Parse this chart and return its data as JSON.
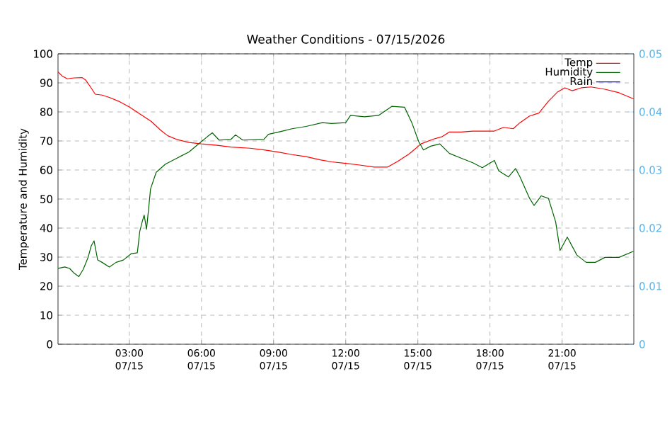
{
  "chart_data": {
    "type": "line",
    "title": "Weather Conditions - 07/15/2026",
    "ylabel": "Temperature and Humidity",
    "xlim": [
      "2026-07-15T00:02",
      "2026-07-15T23:59"
    ],
    "ylim": [
      0,
      100
    ],
    "y2lim": [
      0,
      0.05
    ],
    "xticks": [
      {
        "value": "2026-07-15T03:00",
        "label": "03:00 07/15"
      },
      {
        "value": "2026-07-15T06:00",
        "label": "06:00 07/15"
      },
      {
        "value": "2026-07-15T09:00",
        "label": "09:00 07/15"
      },
      {
        "value": "2026-07-15T12:00",
        "label": "12:00 07/15"
      },
      {
        "value": "2026-07-15T15:00",
        "label": "15:00 07/15"
      },
      {
        "value": "2026-07-15T18:00",
        "label": "18:00 07/15"
      },
      {
        "value": "2026-07-15T21:00",
        "label": "21:00 07/15"
      }
    ],
    "yticks": [
      0,
      10,
      20,
      30,
      40,
      50,
      60,
      70,
      80,
      90,
      100
    ],
    "y2ticks": [
      0,
      0.01,
      0.02,
      0.03,
      0.04,
      0.05
    ],
    "grid": true,
    "legend": "top right",
    "series": [
      {
        "name": "Temp",
        "color": "#ff0000",
        "x": [
          "2026-07-15T00:02",
          "2026-07-15T00:13",
          "2026-07-15T00:25",
          "2026-07-15T00:42",
          "2026-07-15T01:02",
          "2026-07-15T01:11",
          "2026-07-15T01:23",
          "2026-07-15T01:35",
          "2026-07-15T01:52",
          "2026-07-15T02:10",
          "2026-07-15T02:33",
          "2026-07-15T03:00",
          "2026-07-15T03:26",
          "2026-07-15T03:55",
          "2026-07-15T04:19",
          "2026-07-15T04:36",
          "2026-07-15T04:59",
          "2026-07-15T05:29",
          "2026-07-15T06:00",
          "2026-07-15T06:39",
          "2026-07-15T07:14",
          "2026-07-15T08:01",
          "2026-07-15T08:36",
          "2026-07-15T09:11",
          "2026-07-15T09:46",
          "2026-07-15T10:21",
          "2026-07-15T10:56",
          "2026-07-15T11:25",
          "2026-07-15T12:00",
          "2026-07-15T12:35",
          "2026-07-15T13:11",
          "2026-07-15T13:44",
          "2026-07-15T14:10",
          "2026-07-15T14:39",
          "2026-07-15T15:08",
          "2026-07-15T15:38",
          "2026-07-15T16:01",
          "2026-07-15T16:19",
          "2026-07-15T16:48",
          "2026-07-15T17:17",
          "2026-07-15T18:11",
          "2026-07-15T18:34",
          "2026-07-15T18:58",
          "2026-07-15T19:15",
          "2026-07-15T19:39",
          "2026-07-15T20:02",
          "2026-07-15T20:26",
          "2026-07-15T20:49",
          "2026-07-15T21:07",
          "2026-07-15T21:25",
          "2026-07-15T21:48",
          "2026-07-15T22:12",
          "2026-07-15T22:47",
          "2026-07-15T23:22",
          "2026-07-15T23:58"
        ],
        "values": [
          93.8,
          92.3,
          91.4,
          91.7,
          91.8,
          91,
          88.6,
          86.1,
          85.8,
          85,
          83.7,
          81.7,
          79.3,
          76.7,
          73.6,
          71.8,
          70.5,
          69.5,
          69,
          68.5,
          67.9,
          67.5,
          66.9,
          66.2,
          65.3,
          64.6,
          63.5,
          62.8,
          62.3,
          61.7,
          61.0,
          61.0,
          63.0,
          65.6,
          69.0,
          70.6,
          71.5,
          73.1,
          73.1,
          73.4,
          73.4,
          74.7,
          74.2,
          76.3,
          78.6,
          79.6,
          83.7,
          86.9,
          88.3,
          87.3,
          88.3,
          88.6,
          87.8,
          86.6,
          84.5
        ]
      },
      {
        "name": "Humidity",
        "color": "#006400",
        "x": [
          "2026-07-15T00:02",
          "2026-07-15T00:19",
          "2026-07-15T00:31",
          "2026-07-15T00:42",
          "2026-07-15T00:54",
          "2026-07-15T01:05",
          "2026-07-15T01:17",
          "2026-07-15T01:25",
          "2026-07-15T01:32",
          "2026-07-15T01:41",
          "2026-07-15T01:52",
          "2026-07-15T02:10",
          "2026-07-15T02:27",
          "2026-07-15T02:45",
          "2026-07-15T03:05",
          "2026-07-15T03:20",
          "2026-07-15T03:26",
          "2026-07-15T03:32",
          "2026-07-15T03:37",
          "2026-07-15T03:43",
          "2026-07-15T03:53",
          "2026-07-15T04:07",
          "2026-07-15T04:30",
          "2026-07-15T04:59",
          "2026-07-15T05:29",
          "2026-07-15T06:00",
          "2026-07-15T06:15",
          "2026-07-15T06:27",
          "2026-07-15T06:44",
          "2026-07-15T07:14",
          "2026-07-15T07:25",
          "2026-07-15T07:43",
          "2026-07-15T08:36",
          "2026-07-15T08:47",
          "2026-07-15T09:22",
          "2026-07-15T09:46",
          "2026-07-15T10:21",
          "2026-07-15T11:02",
          "2026-07-15T11:25",
          "2026-07-15T12:00",
          "2026-07-15T12:12",
          "2026-07-15T12:47",
          "2026-07-15T13:22",
          "2026-07-15T13:55",
          "2026-07-15T14:27",
          "2026-07-15T14:45",
          "2026-07-15T15:02",
          "2026-07-15T15:14",
          "2026-07-15T15:32",
          "2026-07-15T15:55",
          "2026-07-15T16:19",
          "2026-07-15T16:48",
          "2026-07-15T17:17",
          "2026-07-15T17:41",
          "2026-07-15T18:11",
          "2026-07-15T18:22",
          "2026-07-15T18:46",
          "2026-07-15T19:04",
          "2026-07-15T19:15",
          "2026-07-15T19:39",
          "2026-07-15T19:50",
          "2026-07-15T20:08",
          "2026-07-15T20:26",
          "2026-07-15T20:44",
          "2026-07-15T20:55",
          "2026-07-15T21:13",
          "2026-07-15T21:37",
          "2026-07-15T22:00",
          "2026-07-15T22:23",
          "2026-07-15T22:47",
          "2026-07-15T23:22",
          "2026-07-15T23:58"
        ],
        "values": [
          26.1,
          26.6,
          26.1,
          24.5,
          23.3,
          25.8,
          29.9,
          33.9,
          35.6,
          29.0,
          28.2,
          26.6,
          28.2,
          29.0,
          31.2,
          31.5,
          38.8,
          42.1,
          44.5,
          39.6,
          53.5,
          59.2,
          62.0,
          64.1,
          66.2,
          69.8,
          71.5,
          72.8,
          70.3,
          70.6,
          72.1,
          70.3,
          70.6,
          72.3,
          73.4,
          74.2,
          75.0,
          76.3,
          76.0,
          76.3,
          78.8,
          78.3,
          78.8,
          81.9,
          81.6,
          76.3,
          69.8,
          66.9,
          68.2,
          69.0,
          65.7,
          64.1,
          62.5,
          60.8,
          63.3,
          59.7,
          57.6,
          60.5,
          57.6,
          50.2,
          47.8,
          51.1,
          50.2,
          42.1,
          32.3,
          36.9,
          30.7,
          28.2,
          28.2,
          29.9,
          29.9,
          32.0
        ]
      },
      {
        "name": "Rain",
        "color": "#0000ff",
        "axis": "y2"
      }
    ]
  }
}
